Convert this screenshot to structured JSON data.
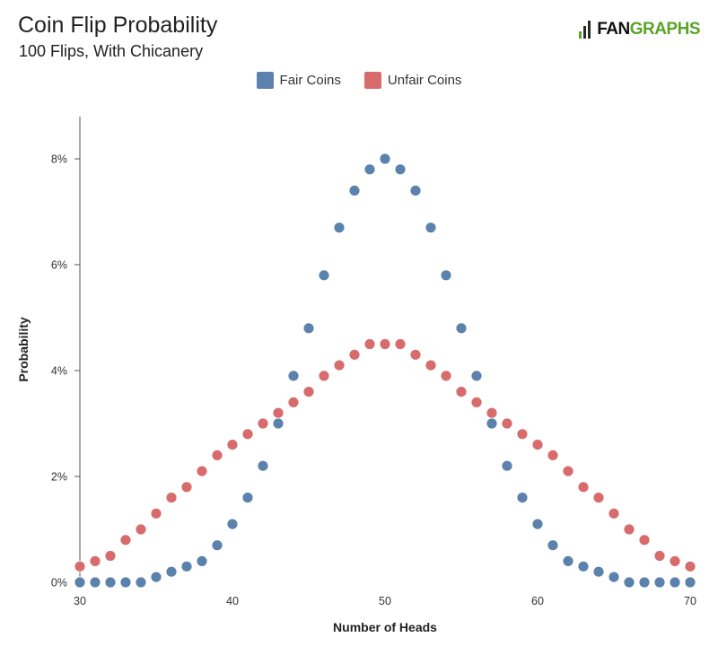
{
  "header": {
    "title": "Coin Flip Probability",
    "subtitle": "100 Flips, With Chicanery",
    "logo_fan": "FAN",
    "logo_graphs": "GRAPHS"
  },
  "legend": [
    {
      "label": "Fair Coins",
      "color": "#5b82ad"
    },
    {
      "label": "Unfair Coins",
      "color": "#d86b6b"
    }
  ],
  "chart_data": {
    "type": "scatter",
    "title": "Coin Flip Probability",
    "subtitle": "100 Flips, With Chicanery",
    "xlabel": "Number of Heads",
    "ylabel": "Probability",
    "xlim": [
      30,
      70
    ],
    "ylim": [
      0,
      8.5
    ],
    "x_ticks": [
      30,
      40,
      50,
      60,
      70
    ],
    "y_ticks": [
      {
        "value": 0,
        "label": "0%"
      },
      {
        "value": 2,
        "label": "2%"
      },
      {
        "value": 4,
        "label": "4%"
      },
      {
        "value": 6,
        "label": "6%"
      },
      {
        "value": 8,
        "label": "8%"
      }
    ],
    "grid": false,
    "legend_position": "top-center",
    "x": [
      30,
      31,
      32,
      33,
      34,
      35,
      36,
      37,
      38,
      39,
      40,
      41,
      42,
      43,
      44,
      45,
      46,
      47,
      48,
      49,
      50,
      51,
      52,
      53,
      54,
      55,
      56,
      57,
      58,
      59,
      60,
      61,
      62,
      63,
      64,
      65,
      66,
      67,
      68,
      69,
      70
    ],
    "series": [
      {
        "name": "Fair Coins",
        "color": "#5b82ad",
        "values": [
          0,
          0,
          0,
          0,
          0,
          0.1,
          0.2,
          0.3,
          0.4,
          0.7,
          1.1,
          1.6,
          2.2,
          3.0,
          3.9,
          4.8,
          5.8,
          6.7,
          7.4,
          7.8,
          8.0,
          7.8,
          7.4,
          6.7,
          5.8,
          4.8,
          3.9,
          3.0,
          2.2,
          1.6,
          1.1,
          0.7,
          0.4,
          0.3,
          0.2,
          0.1,
          0,
          0,
          0,
          0,
          0
        ]
      },
      {
        "name": "Unfair Coins",
        "color": "#d86b6b",
        "values": [
          0.3,
          0.4,
          0.5,
          0.8,
          1.0,
          1.3,
          1.6,
          1.8,
          2.1,
          2.4,
          2.6,
          2.8,
          3.0,
          3.2,
          3.4,
          3.6,
          3.9,
          4.1,
          4.3,
          4.5,
          4.5,
          4.5,
          4.3,
          4.1,
          3.9,
          3.6,
          3.4,
          3.2,
          3.0,
          2.8,
          2.6,
          2.4,
          2.1,
          1.8,
          1.6,
          1.3,
          1.0,
          0.8,
          0.5,
          0.4,
          0.3
        ]
      }
    ]
  }
}
